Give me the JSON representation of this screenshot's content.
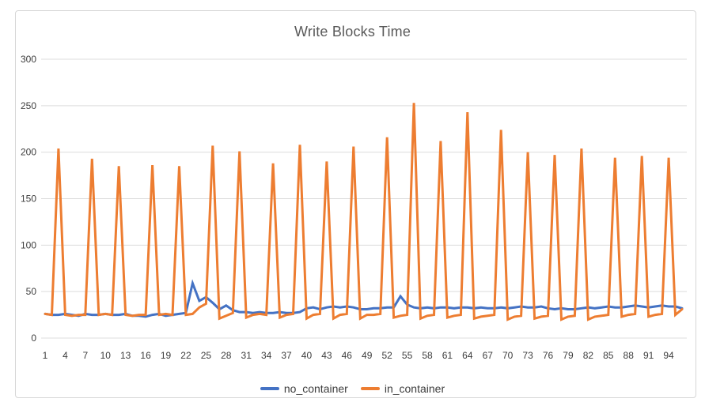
{
  "window": {
    "background_color": "#ffffff",
    "frame_border_color": "#d6d6d6"
  },
  "chart_data": {
    "type": "line",
    "title": "Write Blocks Time",
    "xlabel": "",
    "ylabel": "",
    "ylim": [
      0,
      300
    ],
    "yticks": [
      0,
      50,
      100,
      150,
      200,
      250,
      300
    ],
    "xticks": [
      1,
      4,
      7,
      10,
      13,
      16,
      19,
      22,
      25,
      28,
      31,
      34,
      37,
      40,
      43,
      46,
      49,
      52,
      55,
      58,
      61,
      64,
      67,
      70,
      73,
      76,
      79,
      82,
      85,
      88,
      91,
      94
    ],
    "grid": "horizontal",
    "gridline_color": "#dcdcdc",
    "legend_position": "bottom",
    "x": [
      1,
      2,
      3,
      4,
      5,
      6,
      7,
      8,
      9,
      10,
      11,
      12,
      13,
      14,
      15,
      16,
      17,
      18,
      19,
      20,
      21,
      22,
      23,
      24,
      25,
      26,
      27,
      28,
      29,
      30,
      31,
      32,
      33,
      34,
      35,
      36,
      37,
      38,
      39,
      40,
      41,
      42,
      43,
      44,
      45,
      46,
      47,
      48,
      49,
      50,
      51,
      52,
      53,
      54,
      55,
      56,
      57,
      58,
      59,
      60,
      61,
      62,
      63,
      64,
      65,
      66,
      67,
      68,
      69,
      70,
      71,
      72,
      73,
      74,
      75,
      76,
      77,
      78,
      79,
      80,
      81,
      82,
      83,
      84,
      85,
      86,
      87,
      88,
      89,
      90,
      91,
      92,
      93,
      94,
      95,
      96
    ],
    "series": [
      {
        "name": "no_container",
        "color": "#4472c4",
        "values": [
          26,
          25,
          25,
          26,
          25,
          24,
          26,
          25,
          25,
          26,
          25,
          25,
          26,
          24,
          24,
          23,
          25,
          26,
          24,
          25,
          26,
          27,
          59,
          40,
          44,
          38,
          31,
          35,
          30,
          28,
          28,
          27,
          28,
          27,
          27,
          28,
          27,
          27,
          28,
          32,
          33,
          31,
          33,
          34,
          33,
          34,
          33,
          31,
          31,
          32,
          32,
          33,
          33,
          45,
          36,
          33,
          32,
          33,
          32,
          33,
          33,
          32,
          33,
          33,
          32,
          33,
          32,
          32,
          33,
          32,
          33,
          34,
          33,
          33,
          34,
          32,
          31,
          32,
          31,
          31,
          32,
          33,
          32,
          33,
          34,
          33,
          33,
          34,
          35,
          34,
          33,
          34,
          35,
          34,
          34,
          32
        ]
      },
      {
        "name": "in_container",
        "color": "#ed7d31",
        "values": [
          26,
          25,
          204,
          25,
          24,
          25,
          25,
          193,
          25,
          26,
          25,
          185,
          25,
          24,
          25,
          25,
          186,
          25,
          26,
          25,
          185,
          25,
          26,
          33,
          37,
          207,
          21,
          24,
          27,
          201,
          22,
          25,
          26,
          25,
          188,
          22,
          25,
          26,
          208,
          21,
          25,
          26,
          190,
          21,
          25,
          26,
          206,
          21,
          25,
          25,
          26,
          216,
          22,
          24,
          25,
          253,
          21,
          24,
          25,
          212,
          22,
          24,
          25,
          243,
          21,
          23,
          24,
          25,
          224,
          20,
          23,
          24,
          200,
          21,
          23,
          24,
          197,
          20,
          23,
          24,
          204,
          20,
          23,
          24,
          25,
          194,
          23,
          25,
          26,
          196,
          23,
          25,
          26,
          194,
          25,
          31
        ]
      }
    ]
  }
}
